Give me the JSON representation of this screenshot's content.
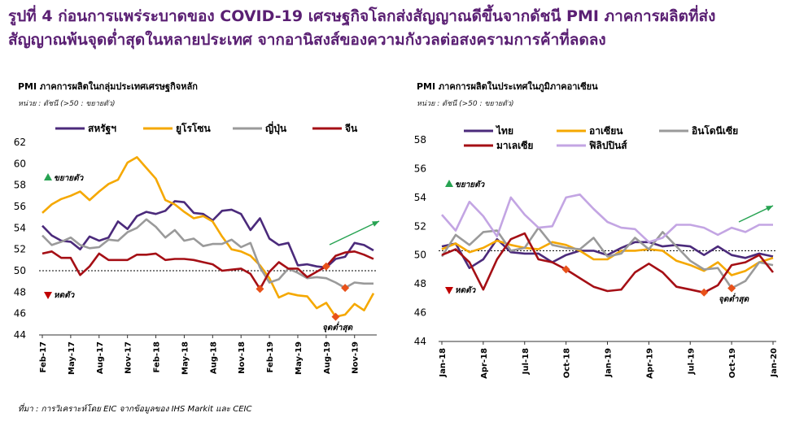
{
  "title_line1": "รูปที่ 4 ก่อนการแพร่ระบาดของ COVID-19 เศรษฐกิจโลกส่งสัญญาณดีขึ้นจากดัชนี PMI ภาคการผลิตที่ส่ง",
  "title_line2": "สัญญาณพ้นจุดต่ำสุดในหลายประเทศ จากอานิสงส์ของความกังวลต่อสงครามการค้าที่ลดลง",
  "source": "ที่มา : การวิเคราะห์โดย EIC จากข้อมูลของ IHS Markit และ CEIC",
  "colors": {
    "dark_purple": "#4b2a7b",
    "orange": "#f5a800",
    "gray": "#9a9a9a",
    "dark_red": "#a50f15",
    "lavender": "#c3a5e3",
    "arrow_green": "#27a352",
    "arrow_red": "#c00000",
    "marker": "#e8511a"
  },
  "chart_data": [
    {
      "type": "line",
      "title": "PMI ภาคการผลิตในกลุ่มประเทศเศรษฐกิจหลัก",
      "unit": "หน่วย : ดัชนี (>50 : ขยายตัว)",
      "x_ticks": [
        "Feb-17",
        "May-17",
        "Aug-17",
        "Nov-17",
        "Feb-18",
        "May-18",
        "Aug-18",
        "Nov-18",
        "Feb-19",
        "May-19",
        "Aug-19",
        "Nov-19"
      ],
      "x_months": [
        "Feb-17",
        "Mar-17",
        "Apr-17",
        "May-17",
        "Jun-17",
        "Jul-17",
        "Aug-17",
        "Sep-17",
        "Oct-17",
        "Nov-17",
        "Dec-17",
        "Jan-18",
        "Feb-18",
        "Mar-18",
        "Apr-18",
        "May-18",
        "Jun-18",
        "Jul-18",
        "Aug-18",
        "Sep-18",
        "Oct-18",
        "Nov-18",
        "Dec-18",
        "Jan-19",
        "Feb-19",
        "Mar-19",
        "Apr-19",
        "May-19",
        "Jun-19",
        "Jul-19",
        "Aug-19",
        "Sep-19",
        "Oct-19",
        "Nov-19",
        "Dec-19",
        "Jan-20"
      ],
      "ylim": [
        44,
        62
      ],
      "y_ticks": [
        44,
        46,
        48,
        50,
        52,
        54,
        56,
        58,
        60,
        62
      ],
      "reference_line": 50,
      "annotations": {
        "expansion": "ขยายตัว",
        "contraction": "หดตัว",
        "trough": "จุดต่ำสุด"
      },
      "series": [
        {
          "name": "สหรัฐฯ",
          "color": "#4b2a7b",
          "values": [
            54.2,
            53.3,
            52.8,
            52.7,
            52.0,
            53.2,
            52.8,
            53.1,
            54.6,
            53.9,
            55.1,
            55.5,
            55.3,
            55.6,
            56.5,
            56.4,
            55.4,
            55.3,
            54.7,
            55.6,
            55.7,
            55.3,
            53.8,
            54.9,
            53.0,
            52.4,
            52.6,
            50.5,
            50.6,
            50.4,
            50.3,
            51.1,
            51.3,
            52.6,
            52.4,
            51.9
          ]
        },
        {
          "name": "ยูโรโซน",
          "color": "#f5a800",
          "values": [
            55.4,
            56.2,
            56.7,
            57.0,
            57.4,
            56.6,
            57.4,
            58.1,
            58.5,
            60.1,
            60.6,
            59.6,
            58.6,
            56.6,
            56.2,
            55.5,
            54.9,
            55.1,
            54.6,
            53.2,
            52.0,
            51.8,
            51.4,
            50.5,
            49.3,
            47.5,
            47.9,
            47.7,
            47.6,
            46.5,
            47.0,
            45.7,
            45.9,
            46.9,
            46.3,
            47.9
          ]
        },
        {
          "name": "ญี่ปุ่น",
          "color": "#9a9a9a",
          "values": [
            53.3,
            52.4,
            52.7,
            53.1,
            52.4,
            52.1,
            52.2,
            52.9,
            52.8,
            53.6,
            54.0,
            54.8,
            54.1,
            53.1,
            53.8,
            52.8,
            53.0,
            52.3,
            52.5,
            52.5,
            52.9,
            52.2,
            52.6,
            50.3,
            48.9,
            49.2,
            50.2,
            49.8,
            49.3,
            49.4,
            49.3,
            48.9,
            48.4,
            48.9,
            48.8,
            48.8
          ]
        },
        {
          "name": "จีน",
          "color": "#a50f15",
          "values": [
            51.6,
            51.8,
            51.2,
            51.2,
            49.6,
            50.4,
            51.6,
            51.0,
            51.0,
            51.0,
            51.5,
            51.5,
            51.6,
            51.0,
            51.1,
            51.1,
            51.0,
            50.8,
            50.6,
            50.0,
            50.1,
            50.2,
            49.7,
            48.3,
            49.9,
            50.8,
            50.2,
            50.2,
            49.4,
            49.9,
            50.4,
            51.4,
            51.7,
            51.8,
            51.5,
            51.1
          ]
        }
      ]
    },
    {
      "type": "line",
      "title": "PMI ภาคการผลิตในประเทศในภูมิภาคอาเซียน",
      "unit": "หน่วย : ดัชนี (>50 : ขยายตัว)",
      "x_ticks": [
        "Jan-18",
        "Apr-18",
        "Jul-18",
        "Oct-18",
        "Jan-19",
        "Apr-19",
        "Jul-19",
        "Oct-19",
        "Jan-20"
      ],
      "x_months": [
        "Jan-18",
        "Feb-18",
        "Mar-18",
        "Apr-18",
        "May-18",
        "Jun-18",
        "Jul-18",
        "Aug-18",
        "Sep-18",
        "Oct-18",
        "Nov-18",
        "Dec-18",
        "Jan-19",
        "Feb-19",
        "Mar-19",
        "Apr-19",
        "May-19",
        "Jun-19",
        "Jul-19",
        "Aug-19",
        "Sep-19",
        "Oct-19",
        "Nov-19",
        "Dec-19",
        "Jan-20"
      ],
      "ylim": [
        44,
        58
      ],
      "y_ticks": [
        44,
        46,
        48,
        50,
        52,
        54,
        56,
        58
      ],
      "reference_line": 50.3,
      "annotations": {
        "expansion": "ขยายตัว",
        "contraction": "หดตัว",
        "trough": "จุดต่ำสุด"
      },
      "series": [
        {
          "name": "ไทย",
          "color": "#4b2a7b",
          "values": [
            50.6,
            50.8,
            49.1,
            49.7,
            51.1,
            50.2,
            50.1,
            50.1,
            49.5,
            50.0,
            50.3,
            50.3,
            50.0,
            50.5,
            50.9,
            50.9,
            50.6,
            50.7,
            50.6,
            50.0,
            50.6,
            50.0,
            49.8,
            50.1,
            49.9
          ]
        },
        {
          "name": "อาเซียน",
          "color": "#f5a800",
          "values": [
            50.4,
            50.8,
            50.2,
            50.5,
            51.0,
            50.7,
            50.5,
            50.4,
            50.9,
            50.7,
            50.3,
            49.7,
            49.7,
            50.3,
            50.3,
            50.4,
            50.3,
            49.6,
            49.3,
            48.9,
            49.5,
            48.6,
            48.9,
            49.5,
            49.8
          ]
        },
        {
          "name": "อินโดนีเซีย",
          "color": "#9a9a9a",
          "values": [
            49.9,
            51.4,
            50.7,
            51.6,
            51.7,
            50.3,
            50.5,
            51.9,
            50.7,
            50.5,
            50.4,
            51.2,
            49.9,
            50.1,
            51.2,
            50.4,
            51.6,
            50.6,
            49.6,
            49.0,
            49.1,
            47.7,
            48.2,
            49.5,
            49.3
          ]
        },
        {
          "name": "มาเลเซีย",
          "color": "#a50f15",
          "values": [
            50.0,
            50.4,
            49.5,
            47.6,
            49.7,
            51.1,
            51.5,
            49.7,
            49.5,
            49.0,
            48.4,
            47.8,
            47.5,
            47.6,
            48.8,
            49.4,
            48.8,
            47.8,
            47.6,
            47.4,
            47.9,
            49.3,
            49.5,
            50.0,
            48.8
          ]
        },
        {
          "name": "ฟิลิปปินส์",
          "color": "#c3a5e3",
          "values": [
            52.8,
            51.7,
            53.7,
            52.7,
            51.3,
            54.0,
            52.8,
            51.9,
            52.0,
            54.0,
            54.2,
            53.2,
            52.3,
            51.9,
            51.8,
            50.9,
            51.2,
            52.1,
            52.1,
            51.9,
            51.4,
            51.9,
            51.6,
            52.1,
            52.1
          ]
        }
      ]
    }
  ]
}
